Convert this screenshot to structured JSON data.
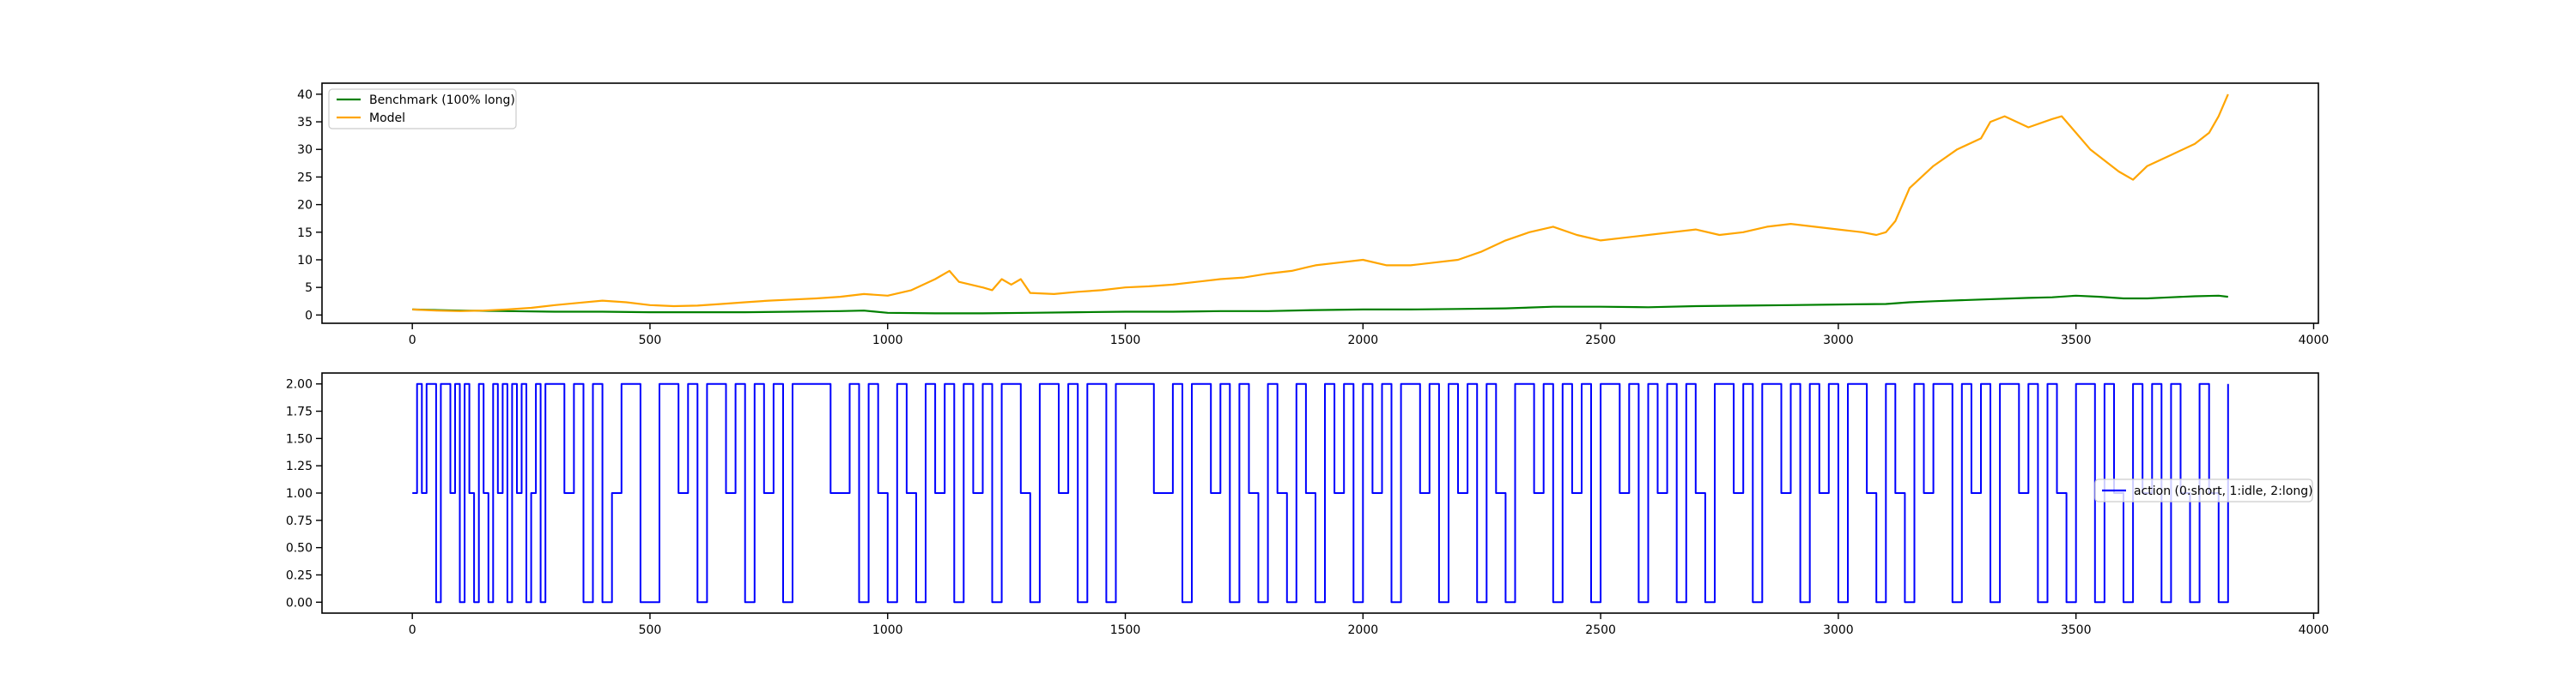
{
  "chart_data": [
    {
      "type": "line",
      "xlim": [
        -190,
        4010
      ],
      "ylim": [
        -1.5,
        42
      ],
      "xticks": [
        0,
        500,
        1000,
        1500,
        2000,
        2500,
        3000,
        3500,
        4000
      ],
      "xtick_labels": [
        "0",
        "500",
        "1000",
        "1500",
        "2000",
        "2500",
        "3000",
        "3500",
        "4000"
      ],
      "yticks": [
        0,
        5,
        10,
        15,
        20,
        25,
        30,
        35,
        40
      ],
      "ytick_labels": [
        "0",
        "5",
        "10",
        "15",
        "20",
        "25",
        "30",
        "35",
        "40"
      ],
      "grid": false,
      "legend": "upper-left",
      "series": [
        {
          "name": "Benchmark (100% long)",
          "color": "#008000",
          "x": [
            0,
            100,
            200,
            300,
            400,
            500,
            600,
            700,
            800,
            900,
            950,
            1000,
            1100,
            1200,
            1300,
            1400,
            1500,
            1600,
            1700,
            1800,
            1900,
            2000,
            2100,
            2200,
            2300,
            2400,
            2500,
            2600,
            2700,
            2800,
            2900,
            3000,
            3100,
            3150,
            3200,
            3300,
            3400,
            3450,
            3500,
            3550,
            3600,
            3650,
            3700,
            3750,
            3800,
            3820
          ],
          "y": [
            1.0,
            0.8,
            0.7,
            0.6,
            0.6,
            0.5,
            0.5,
            0.5,
            0.6,
            0.7,
            0.8,
            0.4,
            0.3,
            0.3,
            0.4,
            0.5,
            0.6,
            0.6,
            0.7,
            0.7,
            0.9,
            1.0,
            1.0,
            1.1,
            1.2,
            1.5,
            1.5,
            1.4,
            1.6,
            1.7,
            1.8,
            1.9,
            2.0,
            2.3,
            2.5,
            2.8,
            3.1,
            3.2,
            3.5,
            3.3,
            3.0,
            3.0,
            3.2,
            3.4,
            3.5,
            3.3
          ]
        },
        {
          "name": "Model",
          "color": "#ffa500",
          "x": [
            0,
            50,
            100,
            150,
            200,
            250,
            300,
            350,
            400,
            450,
            500,
            550,
            600,
            650,
            700,
            750,
            800,
            850,
            900,
            950,
            1000,
            1050,
            1100,
            1130,
            1150,
            1200,
            1220,
            1240,
            1260,
            1280,
            1300,
            1350,
            1400,
            1450,
            1500,
            1550,
            1600,
            1650,
            1700,
            1750,
            1800,
            1850,
            1900,
            1950,
            2000,
            2050,
            2100,
            2150,
            2200,
            2250,
            2300,
            2350,
            2400,
            2450,
            2500,
            2550,
            2600,
            2650,
            2700,
            2750,
            2800,
            2850,
            2900,
            2950,
            3000,
            3050,
            3080,
            3100,
            3120,
            3150,
            3200,
            3250,
            3300,
            3320,
            3350,
            3400,
            3450,
            3470,
            3500,
            3530,
            3560,
            3590,
            3620,
            3650,
            3700,
            3750,
            3780,
            3800,
            3820
          ],
          "y": [
            1.0,
            0.8,
            0.7,
            0.8,
            1.0,
            1.3,
            1.8,
            2.2,
            2.6,
            2.3,
            1.8,
            1.6,
            1.7,
            2.0,
            2.3,
            2.6,
            2.8,
            3.0,
            3.3,
            3.8,
            3.5,
            4.5,
            6.5,
            8.0,
            6.0,
            5.0,
            4.5,
            6.5,
            5.5,
            6.5,
            4.0,
            3.8,
            4.2,
            4.5,
            5.0,
            5.2,
            5.5,
            6.0,
            6.5,
            6.8,
            7.5,
            8.0,
            9.0,
            9.5,
            10.0,
            9.0,
            9.0,
            9.5,
            10.0,
            11.5,
            13.5,
            15.0,
            16.0,
            14.5,
            13.5,
            14.0,
            14.5,
            15.0,
            15.5,
            14.5,
            15.0,
            16.0,
            16.5,
            16.0,
            15.5,
            15.0,
            14.5,
            15.0,
            17.0,
            23.0,
            27.0,
            30.0,
            32.0,
            35.0,
            36.0,
            34.0,
            35.5,
            36.0,
            33.0,
            30.0,
            28.0,
            26.0,
            24.5,
            27.0,
            29.0,
            31.0,
            33.0,
            36.0,
            40.0
          ]
        }
      ]
    },
    {
      "type": "line",
      "style": "steps",
      "xlim": [
        -190,
        4010
      ],
      "ylim": [
        -0.1,
        2.1
      ],
      "xticks": [
        0,
        500,
        1000,
        1500,
        2000,
        2500,
        3000,
        3500,
        4000
      ],
      "xtick_labels": [
        "0",
        "500",
        "1000",
        "1500",
        "2000",
        "2500",
        "3000",
        "3500",
        "4000"
      ],
      "yticks": [
        0,
        0.25,
        0.5,
        0.75,
        1.0,
        1.25,
        1.5,
        1.75,
        2.0
      ],
      "ytick_labels": [
        "0.00",
        "0.25",
        "0.50",
        "0.75",
        "1.00",
        "1.25",
        "1.50",
        "1.75",
        "2.00"
      ],
      "grid": false,
      "legend": "center-right",
      "series": [
        {
          "name": "action (0:short, 1:idle, 2:long)",
          "color": "#0000ff",
          "x": [
            0,
            10,
            20,
            30,
            40,
            50,
            60,
            70,
            80,
            90,
            100,
            110,
            120,
            130,
            140,
            150,
            160,
            170,
            180,
            190,
            200,
            210,
            220,
            230,
            240,
            250,
            260,
            270,
            280,
            300,
            320,
            340,
            360,
            380,
            400,
            420,
            440,
            460,
            480,
            520,
            560,
            580,
            600,
            620,
            640,
            660,
            680,
            700,
            720,
            740,
            760,
            780,
            800,
            840,
            880,
            920,
            940,
            960,
            980,
            1000,
            1020,
            1040,
            1060,
            1080,
            1100,
            1120,
            1140,
            1160,
            1180,
            1200,
            1220,
            1240,
            1260,
            1280,
            1300,
            1320,
            1340,
            1360,
            1380,
            1400,
            1420,
            1440,
            1460,
            1480,
            1520,
            1560,
            1600,
            1620,
            1640,
            1660,
            1680,
            1700,
            1720,
            1740,
            1760,
            1780,
            1800,
            1820,
            1840,
            1860,
            1880,
            1900,
            1920,
            1940,
            1960,
            1980,
            2000,
            2020,
            2040,
            2060,
            2080,
            2100,
            2120,
            2140,
            2160,
            2180,
            2200,
            2220,
            2240,
            2260,
            2280,
            2300,
            2320,
            2340,
            2360,
            2380,
            2400,
            2420,
            2440,
            2460,
            2480,
            2500,
            2520,
            2540,
            2560,
            2580,
            2600,
            2620,
            2640,
            2660,
            2680,
            2700,
            2720,
            2740,
            2760,
            2780,
            2800,
            2820,
            2840,
            2860,
            2880,
            2900,
            2920,
            2940,
            2960,
            2980,
            3000,
            3020,
            3040,
            3060,
            3080,
            3100,
            3120,
            3140,
            3160,
            3180,
            3200,
            3220,
            3240,
            3260,
            3280,
            3300,
            3320,
            3340,
            3360,
            3380,
            3400,
            3420,
            3440,
            3460,
            3480,
            3500,
            3520,
            3540,
            3560,
            3580,
            3600,
            3620,
            3640,
            3660,
            3680,
            3700,
            3720,
            3740,
            3760,
            3780,
            3800,
            3820
          ],
          "y": [
            1,
            2,
            1,
            2,
            2,
            0,
            2,
            2,
            1,
            2,
            0,
            2,
            1,
            0,
            2,
            1,
            0,
            2,
            1,
            2,
            0,
            2,
            1,
            2,
            0,
            1,
            2,
            0,
            2,
            2,
            1,
            2,
            0,
            2,
            0,
            1,
            2,
            2,
            0,
            2,
            1,
            2,
            0,
            2,
            2,
            1,
            2,
            0,
            2,
            1,
            2,
            0,
            2,
            2,
            1,
            2,
            0,
            2,
            1,
            0,
            2,
            1,
            0,
            2,
            1,
            2,
            0,
            2,
            1,
            2,
            0,
            2,
            2,
            1,
            0,
            2,
            2,
            1,
            2,
            0,
            2,
            2,
            0,
            2,
            2,
            1,
            2,
            0,
            2,
            2,
            1,
            2,
            0,
            2,
            1,
            0,
            2,
            1,
            0,
            2,
            1,
            0,
            2,
            1,
            2,
            0,
            2,
            1,
            2,
            0,
            2,
            2,
            1,
            2,
            0,
            2,
            1,
            2,
            0,
            2,
            1,
            0,
            2,
            2,
            1,
            2,
            0,
            2,
            1,
            2,
            0,
            2,
            2,
            1,
            2,
            0,
            2,
            1,
            2,
            0,
            2,
            1,
            0,
            2,
            2,
            1,
            2,
            0,
            2,
            2,
            1,
            2,
            0,
            2,
            1,
            2,
            0,
            2,
            2,
            1,
            0,
            2,
            1,
            0,
            2,
            1,
            2,
            2,
            0,
            2,
            1,
            2,
            0,
            2,
            2,
            1,
            2,
            0,
            2,
            1,
            0,
            2,
            2,
            0,
            2,
            1,
            0,
            2,
            1,
            2,
            0,
            2,
            1,
            0,
            2,
            1,
            0,
            2
          ]
        }
      ]
    }
  ]
}
